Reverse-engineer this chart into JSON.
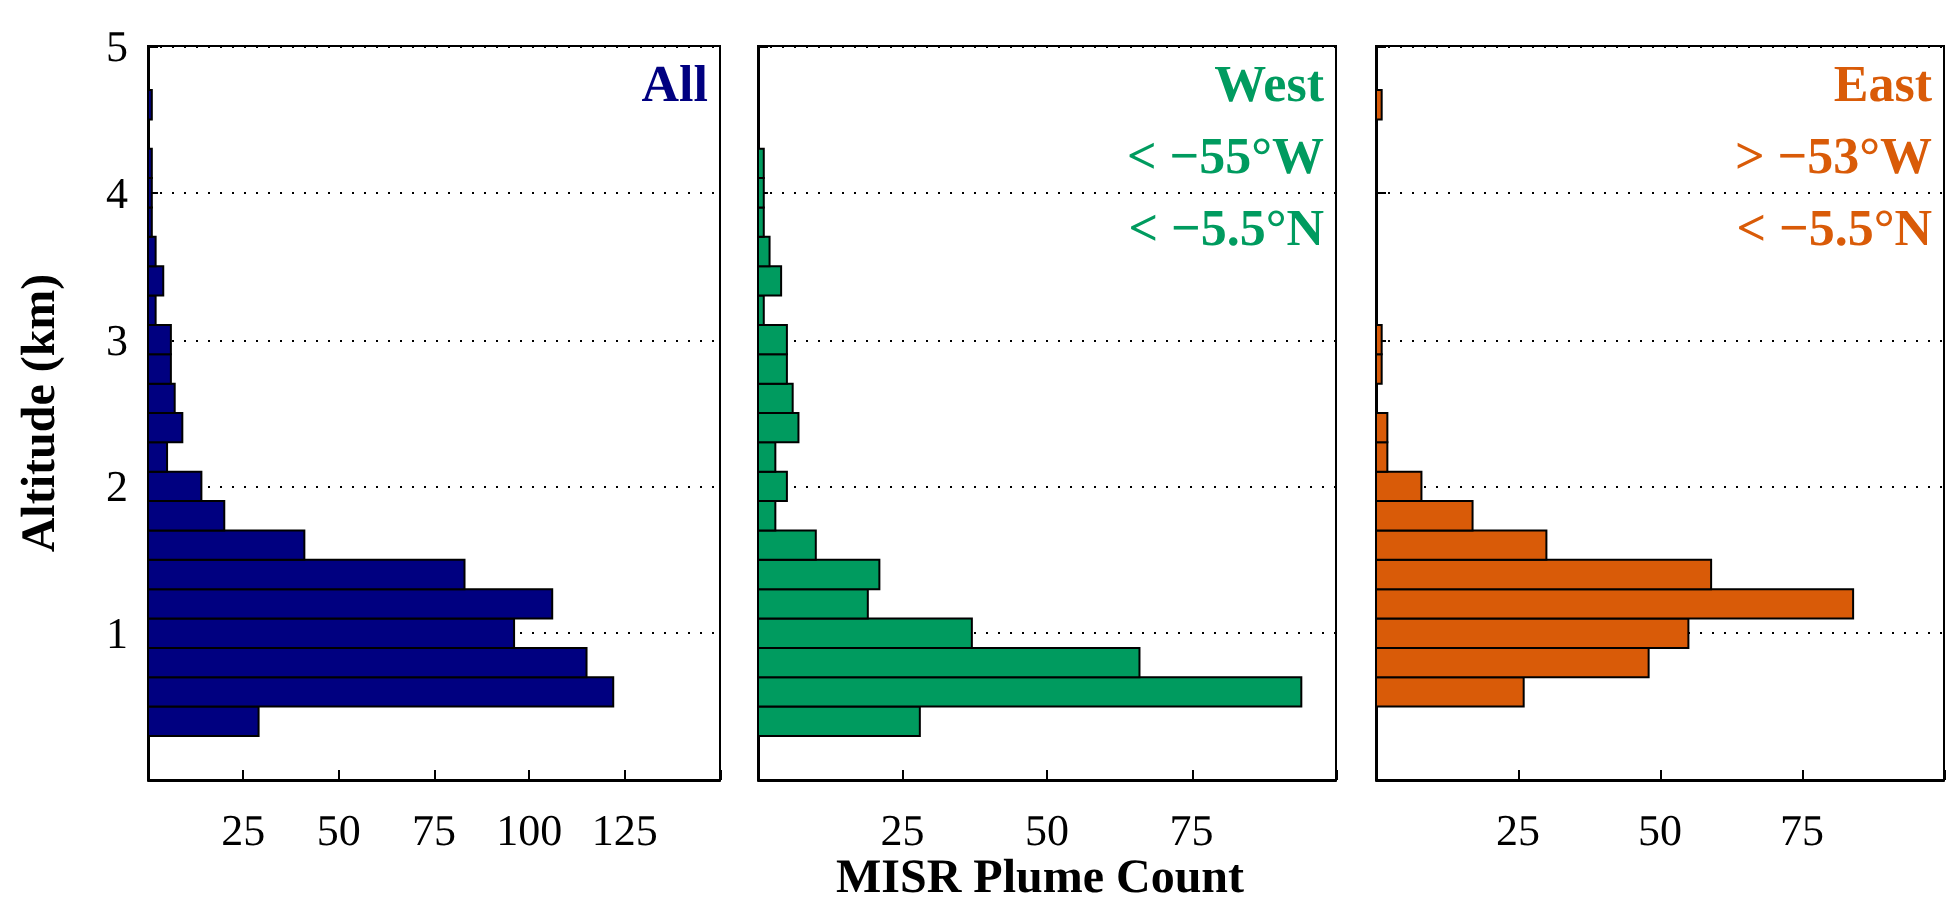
{
  "chart_data": [
    {
      "type": "histogram",
      "title": "All",
      "ylabel": "Altitude (km)",
      "orientation": "horizontal",
      "bins": [
        0.3,
        0.5,
        0.7,
        0.9,
        1.1,
        1.3,
        1.5,
        1.7,
        1.9,
        2.1,
        2.3,
        2.5,
        2.7,
        2.9,
        3.1,
        3.3,
        3.5,
        3.7,
        3.9,
        4.1,
        4.3,
        4.5,
        4.7
      ],
      "series": [
        {
          "color": "#000080",
          "values": [
            29,
            122,
            115,
            96,
            106,
            83,
            41,
            20,
            14,
            5,
            9,
            7,
            6,
            6,
            2,
            4,
            2,
            1,
            1,
            1,
            0,
            1
          ]
        }
      ],
      "xlim": [
        0,
        150
      ],
      "xticks": [
        25,
        50,
        75,
        100,
        125
      ],
      "ylim": [
        0,
        5
      ],
      "yticks": [
        1,
        2,
        3,
        4,
        5
      ],
      "grid": "y"
    },
    {
      "type": "histogram",
      "title": "West",
      "xlabel": "MISR Plume Count",
      "annotations": [
        "< −55°W",
        "< −5.5°N"
      ],
      "orientation": "horizontal",
      "bins": [
        0.3,
        0.5,
        0.7,
        0.9,
        1.1,
        1.3,
        1.5,
        1.7,
        1.9,
        2.1,
        2.3,
        2.5,
        2.7,
        2.9,
        3.1,
        3.3,
        3.5,
        3.7,
        3.9,
        4.1,
        4.3,
        4.5,
        4.7
      ],
      "series": [
        {
          "color": "#009b5f",
          "values": [
            28,
            94,
            66,
            37,
            19,
            21,
            10,
            3,
            5,
            3,
            7,
            6,
            5,
            5,
            1,
            4,
            2,
            1,
            1,
            1,
            0,
            0
          ]
        }
      ],
      "xlim": [
        0,
        100
      ],
      "xticks": [
        25,
        50,
        75
      ],
      "ylim": [
        0,
        5
      ],
      "yticks": [
        1,
        2,
        3,
        4,
        5
      ],
      "grid": "y",
      "tick_labels": "x"
    },
    {
      "type": "histogram",
      "title": "East",
      "annotations": [
        "> −53°W",
        "< −5.5°N"
      ],
      "orientation": "horizontal",
      "bins": [
        0.3,
        0.5,
        0.7,
        0.9,
        1.1,
        1.3,
        1.5,
        1.7,
        1.9,
        2.1,
        2.3,
        2.5,
        2.7,
        2.9,
        3.1,
        3.3,
        3.5,
        3.7,
        3.9,
        4.1,
        4.3,
        4.5,
        4.7
      ],
      "series": [
        {
          "color": "#d95b08",
          "values": [
            0,
            26,
            48,
            55,
            84,
            59,
            30,
            17,
            8,
            2,
            2,
            0,
            1,
            1,
            0,
            0,
            0,
            0,
            0,
            0,
            0,
            1
          ]
        }
      ],
      "xlim": [
        0,
        100
      ],
      "xticks": [
        25,
        50,
        75
      ],
      "ylim": [
        0,
        5
      ],
      "yticks": [
        1,
        2,
        3,
        4,
        5
      ],
      "grid": "y",
      "tick_labels": "x"
    }
  ]
}
